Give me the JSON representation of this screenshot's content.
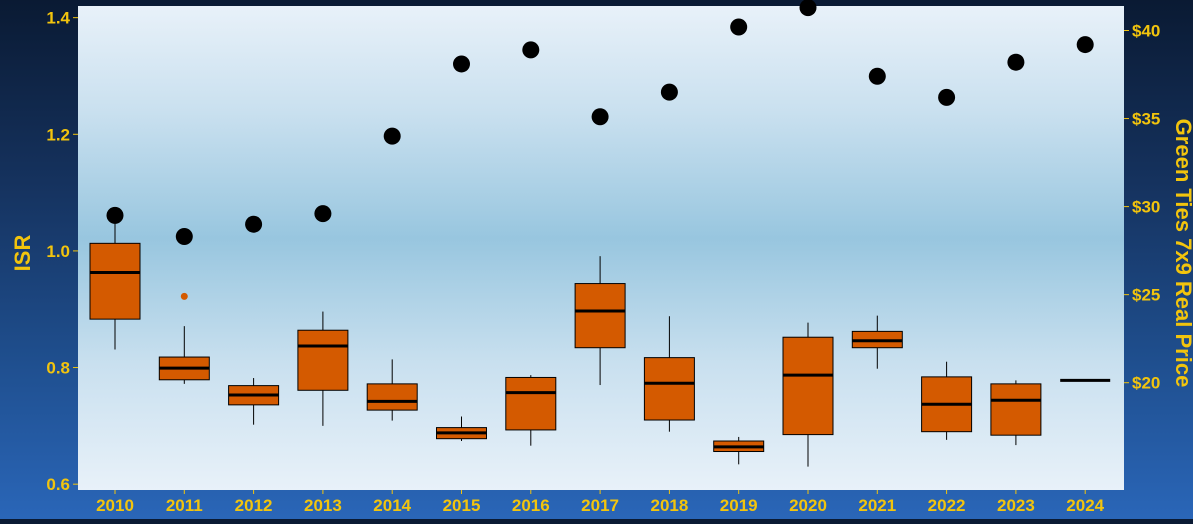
{
  "chart_data": {
    "type": "box",
    "categories": [
      "2010",
      "2011",
      "2012",
      "2013",
      "2014",
      "2015",
      "2016",
      "2017",
      "2018",
      "2019",
      "2020",
      "2021",
      "2022",
      "2023",
      "2024"
    ],
    "ylabel": "ISR",
    "y2label": "Green Ties 7x9 Real Price",
    "ylim": [
      0.59,
      1.42
    ],
    "y_ticks": [
      "0.6",
      "0.8",
      "1.0",
      "1.2",
      "1.4"
    ],
    "y2_ticks": [
      "$20",
      "$25",
      "$30",
      "$35",
      "$40"
    ],
    "y2_tick_values": [
      20,
      25,
      30,
      35,
      40
    ],
    "y2_to_y": {
      "intercept": 0.17,
      "slope": 0.0302
    },
    "boxplots": [
      {
        "category": "2010",
        "min": 0.831,
        "q1": 0.883,
        "median": 0.963,
        "q3": 1.013,
        "max": 1.061
      },
      {
        "category": "2011",
        "min": 0.772,
        "q1": 0.779,
        "median": 0.799,
        "q3": 0.818,
        "max": 0.871,
        "outliers": [
          0.922
        ]
      },
      {
        "category": "2012",
        "min": 0.702,
        "q1": 0.736,
        "median": 0.753,
        "q3": 0.769,
        "max": 0.782
      },
      {
        "category": "2013",
        "min": 0.7,
        "q1": 0.761,
        "median": 0.837,
        "q3": 0.864,
        "max": 0.896
      },
      {
        "category": "2014",
        "min": 0.709,
        "q1": 0.727,
        "median": 0.742,
        "q3": 0.772,
        "max": 0.814
      },
      {
        "category": "2015",
        "min": 0.674,
        "q1": 0.678,
        "median": 0.688,
        "q3": 0.697,
        "max": 0.716
      },
      {
        "category": "2016",
        "min": 0.666,
        "q1": 0.693,
        "median": 0.757,
        "q3": 0.783,
        "max": 0.787
      },
      {
        "category": "2017",
        "min": 0.77,
        "q1": 0.834,
        "median": 0.897,
        "q3": 0.944,
        "max": 0.991
      },
      {
        "category": "2018",
        "min": 0.69,
        "q1": 0.71,
        "median": 0.773,
        "q3": 0.817,
        "max": 0.888
      },
      {
        "category": "2019",
        "min": 0.634,
        "q1": 0.656,
        "median": 0.664,
        "q3": 0.674,
        "max": 0.681
      },
      {
        "category": "2020",
        "min": 0.63,
        "q1": 0.685,
        "median": 0.787,
        "q3": 0.852,
        "max": 0.877
      },
      {
        "category": "2021",
        "min": 0.798,
        "q1": 0.834,
        "median": 0.846,
        "q3": 0.862,
        "max": 0.889
      },
      {
        "category": "2022",
        "min": 0.676,
        "q1": 0.69,
        "median": 0.737,
        "q3": 0.784,
        "max": 0.81
      },
      {
        "category": "2023",
        "min": 0.667,
        "q1": 0.684,
        "median": 0.744,
        "q3": 0.772,
        "max": 0.778
      },
      {
        "category": "2024",
        "min": 0.778,
        "q1": 0.778,
        "median": 0.778,
        "q3": 0.778,
        "max": 0.778
      }
    ],
    "price_series": {
      "values": [
        29.5,
        28.3,
        29.0,
        29.6,
        34.0,
        38.1,
        38.9,
        35.1,
        36.5,
        40.2,
        41.3,
        37.4,
        36.2,
        38.2,
        39.2
      ]
    },
    "colors": {
      "box_fill": "#d45a00",
      "box_border": "#000000",
      "price_dot": "#000000",
      "outlier": "#d45a00",
      "tick_text": "#f2c40d",
      "plot_panel_light": "#e6f0f8",
      "plot_panel_mid": "#9cc8e0"
    },
    "grid": false,
    "legend": "none"
  }
}
